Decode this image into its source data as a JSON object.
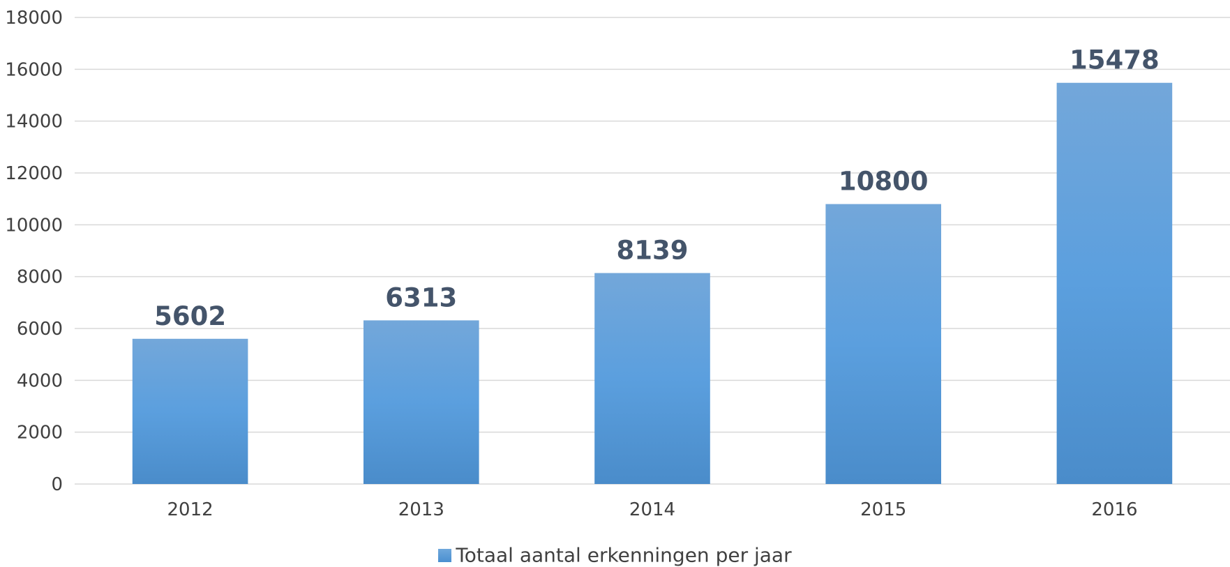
{
  "chart_data": {
    "type": "bar",
    "categories": [
      "2012",
      "2013",
      "2014",
      "2015",
      "2016"
    ],
    "series": [
      {
        "name": "Totaal aantal erkenningen per jaar",
        "values": [
          5602,
          6313,
          8139,
          10800,
          15478
        ]
      }
    ],
    "data_labels": [
      "5602",
      "6313",
      "8139",
      "10800",
      "15478"
    ],
    "y_ticks": [
      "0",
      "2000",
      "4000",
      "6000",
      "8000",
      "10000",
      "12000",
      "14000",
      "16000",
      "18000"
    ],
    "ylim": [
      0,
      18000
    ],
    "grid": true,
    "legend_position": "bottom",
    "colors": {
      "bar_top": "#73a7da",
      "bar_mid": "#5b9fde",
      "bar_bottom": "#4a8cca",
      "label": "#44546a",
      "tick": "#404040",
      "grid": "#d9d9d9"
    }
  }
}
